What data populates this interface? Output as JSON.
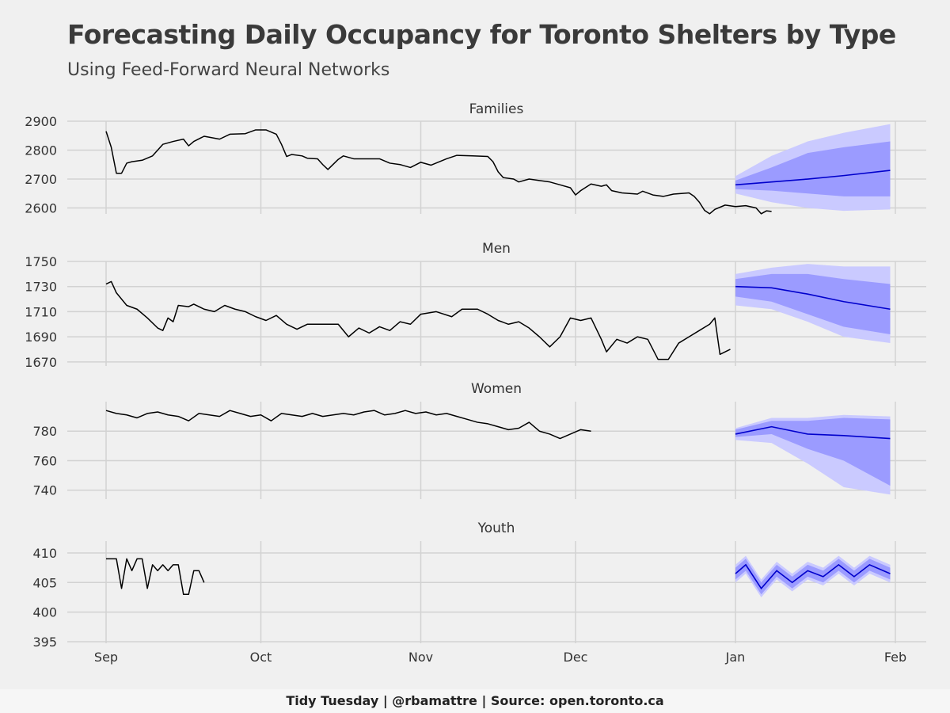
{
  "header": {
    "title": "Forecasting Daily Occupancy for Toronto Shelters by Type",
    "subtitle": "Using Feed-Forward Neural Networks"
  },
  "caption": "Tidy Tuesday | @rbamattre | Source: open.toronto.ca",
  "colors": {
    "background": "#f0f0f0",
    "grid": "#d2d2d2",
    "history_line": "#000000",
    "forecast_line": "#0000cc",
    "band_80": "#9b9bff",
    "band_95": "#cacaff"
  },
  "chart_data": {
    "type": "line",
    "x_axis": {
      "start": "2016-09-01",
      "end": "2017-02-01",
      "forecast_start": "2017-01-01",
      "ticks": [
        {
          "label": "Sep",
          "date": "2016-09-01"
        },
        {
          "label": "Oct",
          "date": "2016-10-01"
        },
        {
          "label": "Nov",
          "date": "2016-11-01"
        },
        {
          "label": "Dec",
          "date": "2016-12-01"
        },
        {
          "label": "Jan",
          "date": "2017-01-01"
        },
        {
          "label": "Feb",
          "date": "2017-02-01"
        }
      ]
    },
    "panels": [
      {
        "name": "Families",
        "ylim": [
          2585,
          2900
        ],
        "yticks": [
          2600,
          2700,
          2800,
          2900
        ],
        "history": [
          [
            "2016-09-01",
            2865
          ],
          [
            "2016-09-02",
            2810
          ],
          [
            "2016-09-03",
            2720
          ],
          [
            "2016-09-04",
            2720
          ],
          [
            "2016-09-05",
            2755
          ],
          [
            "2016-09-06",
            2760
          ],
          [
            "2016-09-08",
            2765
          ],
          [
            "2016-09-10",
            2780
          ],
          [
            "2016-09-12",
            2820
          ],
          [
            "2016-09-14",
            2830
          ],
          [
            "2016-09-16",
            2838
          ],
          [
            "2016-09-17",
            2815
          ],
          [
            "2016-09-18",
            2830
          ],
          [
            "2016-09-20",
            2848
          ],
          [
            "2016-09-23",
            2838
          ],
          [
            "2016-09-25",
            2855
          ],
          [
            "2016-09-28",
            2857
          ],
          [
            "2016-09-30",
            2870
          ],
          [
            "2016-10-02",
            2870
          ],
          [
            "2016-10-04",
            2855
          ],
          [
            "2016-10-05",
            2820
          ],
          [
            "2016-10-06",
            2778
          ],
          [
            "2016-10-07",
            2785
          ],
          [
            "2016-10-09",
            2780
          ],
          [
            "2016-10-10",
            2772
          ],
          [
            "2016-10-12",
            2770
          ],
          [
            "2016-10-13",
            2750
          ],
          [
            "2016-10-14",
            2733
          ],
          [
            "2016-10-16",
            2768
          ],
          [
            "2016-10-17",
            2780
          ],
          [
            "2016-10-19",
            2770
          ],
          [
            "2016-10-24",
            2770
          ],
          [
            "2016-10-26",
            2755
          ],
          [
            "2016-10-28",
            2750
          ],
          [
            "2016-10-30",
            2740
          ],
          [
            "2016-11-01",
            2758
          ],
          [
            "2016-11-03",
            2748
          ],
          [
            "2016-11-06",
            2770
          ],
          [
            "2016-11-08",
            2782
          ],
          [
            "2016-11-11",
            2780
          ],
          [
            "2016-11-14",
            2778
          ],
          [
            "2016-11-15",
            2760
          ],
          [
            "2016-11-16",
            2725
          ],
          [
            "2016-11-17",
            2705
          ],
          [
            "2016-11-19",
            2700
          ],
          [
            "2016-11-20",
            2690
          ],
          [
            "2016-11-22",
            2700
          ],
          [
            "2016-11-24",
            2695
          ],
          [
            "2016-11-26",
            2690
          ],
          [
            "2016-11-28",
            2680
          ],
          [
            "2016-11-30",
            2670
          ],
          [
            "2016-12-01",
            2645
          ],
          [
            "2016-12-02",
            2660
          ],
          [
            "2016-12-04",
            2683
          ],
          [
            "2016-12-06",
            2675
          ],
          [
            "2016-12-07",
            2680
          ],
          [
            "2016-12-08",
            2660
          ],
          [
            "2016-12-10",
            2652
          ],
          [
            "2016-12-13",
            2648
          ],
          [
            "2016-12-14",
            2658
          ],
          [
            "2016-12-16",
            2645
          ],
          [
            "2016-12-18",
            2640
          ],
          [
            "2016-12-20",
            2648
          ],
          [
            "2016-12-23",
            2652
          ],
          [
            "2016-12-24",
            2640
          ],
          [
            "2016-12-25",
            2620
          ],
          [
            "2016-12-26",
            2592
          ],
          [
            "2016-12-27",
            2580
          ],
          [
            "2016-12-28",
            2595
          ],
          [
            "2016-12-30",
            2610
          ],
          [
            "2017-01-01",
            2605
          ],
          [
            "2017-01-03",
            2608
          ],
          [
            "2017-01-05",
            2600
          ],
          [
            "2017-01-06",
            2580
          ],
          [
            "2017-01-07",
            2590
          ],
          [
            "2017-01-08",
            2588
          ]
        ],
        "forecast": [
          [
            "2017-01-01",
            2680,
            2665,
            2695,
            2650,
            2710
          ],
          [
            "2017-01-08",
            2690,
            2660,
            2740,
            2620,
            2780
          ],
          [
            "2017-01-15",
            2700,
            2650,
            2790,
            2600,
            2830
          ],
          [
            "2017-01-22",
            2712,
            2640,
            2810,
            2590,
            2860
          ],
          [
            "2017-01-31",
            2730,
            2640,
            2830,
            2595,
            2890
          ]
        ]
      },
      {
        "name": "Men",
        "ylim": [
          1668,
          1750
        ],
        "yticks": [
          1670,
          1690,
          1710,
          1730,
          1750
        ],
        "history": [
          [
            "2016-09-01",
            1732
          ],
          [
            "2016-09-02",
            1734
          ],
          [
            "2016-09-03",
            1725
          ],
          [
            "2016-09-05",
            1715
          ],
          [
            "2016-09-07",
            1712
          ],
          [
            "2016-09-09",
            1705
          ],
          [
            "2016-09-11",
            1697
          ],
          [
            "2016-09-12",
            1695
          ],
          [
            "2016-09-13",
            1705
          ],
          [
            "2016-09-14",
            1702
          ],
          [
            "2016-09-15",
            1715
          ],
          [
            "2016-09-17",
            1714
          ],
          [
            "2016-09-18",
            1716
          ],
          [
            "2016-09-20",
            1712
          ],
          [
            "2016-09-22",
            1710
          ],
          [
            "2016-09-24",
            1715
          ],
          [
            "2016-09-26",
            1712
          ],
          [
            "2016-09-28",
            1710
          ],
          [
            "2016-09-30",
            1706
          ],
          [
            "2016-10-02",
            1703
          ],
          [
            "2016-10-04",
            1707
          ],
          [
            "2016-10-06",
            1700
          ],
          [
            "2016-10-08",
            1696
          ],
          [
            "2016-10-10",
            1700
          ],
          [
            "2016-10-13",
            1700
          ],
          [
            "2016-10-16",
            1700
          ],
          [
            "2016-10-18",
            1690
          ],
          [
            "2016-10-20",
            1697
          ],
          [
            "2016-10-22",
            1693
          ],
          [
            "2016-10-24",
            1698
          ],
          [
            "2016-10-26",
            1695
          ],
          [
            "2016-10-28",
            1702
          ],
          [
            "2016-10-30",
            1700
          ],
          [
            "2016-11-01",
            1708
          ],
          [
            "2016-11-04",
            1710
          ],
          [
            "2016-11-07",
            1706
          ],
          [
            "2016-11-09",
            1712
          ],
          [
            "2016-11-12",
            1712
          ],
          [
            "2016-11-14",
            1708
          ],
          [
            "2016-11-16",
            1703
          ],
          [
            "2016-11-18",
            1700
          ],
          [
            "2016-11-20",
            1702
          ],
          [
            "2016-11-22",
            1697
          ],
          [
            "2016-11-24",
            1690
          ],
          [
            "2016-11-26",
            1682
          ],
          [
            "2016-11-28",
            1690
          ],
          [
            "2016-11-30",
            1705
          ],
          [
            "2016-12-02",
            1703
          ],
          [
            "2016-12-04",
            1705
          ],
          [
            "2016-12-06",
            1688
          ],
          [
            "2016-12-07",
            1678
          ],
          [
            "2016-12-09",
            1688
          ],
          [
            "2016-12-11",
            1685
          ],
          [
            "2016-12-13",
            1690
          ],
          [
            "2016-12-15",
            1688
          ],
          [
            "2016-12-17",
            1672
          ],
          [
            "2016-12-19",
            1672
          ],
          [
            "2016-12-21",
            1685
          ],
          [
            "2016-12-23",
            1690
          ],
          [
            "2016-12-25",
            1695
          ],
          [
            "2016-12-27",
            1700
          ],
          [
            "2016-12-28",
            1705
          ],
          [
            "2016-12-29",
            1676
          ],
          [
            "2016-12-31",
            1680
          ]
        ],
        "forecast": [
          [
            "2017-01-01",
            1730,
            1722,
            1736,
            1715,
            1740
          ],
          [
            "2017-01-08",
            1729,
            1718,
            1740,
            1712,
            1745
          ],
          [
            "2017-01-15",
            1724,
            1708,
            1740,
            1702,
            1748
          ],
          [
            "2017-01-22",
            1718,
            1698,
            1736,
            1690,
            1746
          ],
          [
            "2017-01-31",
            1712,
            1692,
            1732,
            1685,
            1746
          ]
        ]
      },
      {
        "name": "Women",
        "ylim": [
          735,
          800
        ],
        "yticks": [
          740,
          760,
          780
        ],
        "history": [
          [
            "2016-09-01",
            794
          ],
          [
            "2016-09-03",
            792
          ],
          [
            "2016-09-05",
            791
          ],
          [
            "2016-09-07",
            789
          ],
          [
            "2016-09-09",
            792
          ],
          [
            "2016-09-11",
            793
          ],
          [
            "2016-09-13",
            791
          ],
          [
            "2016-09-15",
            790
          ],
          [
            "2016-09-17",
            787
          ],
          [
            "2016-09-19",
            792
          ],
          [
            "2016-09-21",
            791
          ],
          [
            "2016-09-23",
            790
          ],
          [
            "2016-09-25",
            794
          ],
          [
            "2016-09-27",
            792
          ],
          [
            "2016-09-29",
            790
          ],
          [
            "2016-10-01",
            791
          ],
          [
            "2016-10-03",
            787
          ],
          [
            "2016-10-05",
            792
          ],
          [
            "2016-10-07",
            791
          ],
          [
            "2016-10-09",
            790
          ],
          [
            "2016-10-11",
            792
          ],
          [
            "2016-10-13",
            790
          ],
          [
            "2016-10-15",
            791
          ],
          [
            "2016-10-17",
            792
          ],
          [
            "2016-10-19",
            791
          ],
          [
            "2016-10-21",
            793
          ],
          [
            "2016-10-23",
            794
          ],
          [
            "2016-10-25",
            791
          ],
          [
            "2016-10-27",
            792
          ],
          [
            "2016-10-29",
            794
          ],
          [
            "2016-10-31",
            792
          ],
          [
            "2016-11-02",
            793
          ],
          [
            "2016-11-04",
            791
          ],
          [
            "2016-11-06",
            792
          ],
          [
            "2016-11-08",
            790
          ],
          [
            "2016-11-10",
            788
          ],
          [
            "2016-11-12",
            786
          ],
          [
            "2016-11-14",
            785
          ],
          [
            "2016-11-16",
            783
          ],
          [
            "2016-11-18",
            781
          ],
          [
            "2016-11-20",
            782
          ],
          [
            "2016-11-22",
            786
          ],
          [
            "2016-11-24",
            780
          ],
          [
            "2016-11-26",
            778
          ],
          [
            "2016-11-28",
            775
          ],
          [
            "2016-11-30",
            778
          ],
          [
            "2016-12-02",
            781
          ],
          [
            "2016-12-04",
            780
          ]
        ],
        "forecast": [
          [
            "2017-01-01",
            778,
            776,
            781,
            774,
            782
          ],
          [
            "2017-01-08",
            783,
            778,
            787,
            772,
            789
          ],
          [
            "2017-01-15",
            778,
            768,
            787,
            758,
            789
          ],
          [
            "2017-01-22",
            777,
            760,
            789,
            742,
            791
          ],
          [
            "2017-01-31",
            775,
            743,
            788,
            737,
            790
          ]
        ]
      },
      {
        "name": "Youth",
        "ylim": [
          395,
          412
        ],
        "yticks": [
          395,
          400,
          405,
          410
        ],
        "history": [
          [
            "2016-09-01",
            409
          ],
          [
            "2016-09-02",
            409
          ],
          [
            "2016-09-03",
            409
          ],
          [
            "2016-09-04",
            404
          ],
          [
            "2016-09-05",
            409
          ],
          [
            "2016-09-06",
            407
          ],
          [
            "2016-09-07",
            409
          ],
          [
            "2016-09-08",
            409
          ],
          [
            "2016-09-09",
            404
          ],
          [
            "2016-09-10",
            408
          ],
          [
            "2016-09-11",
            407
          ],
          [
            "2016-09-12",
            408
          ],
          [
            "2016-09-13",
            407
          ],
          [
            "2016-09-14",
            408
          ],
          [
            "2016-09-15",
            408
          ],
          [
            "2016-09-16",
            403
          ],
          [
            "2016-09-17",
            403
          ],
          [
            "2016-09-18",
            407
          ],
          [
            "2016-09-19",
            407
          ],
          [
            "2016-09-20",
            405
          ]
        ],
        "forecast": [
          [
            "2017-01-01",
            406.5,
            405.5,
            407.5,
            405,
            408
          ],
          [
            "2017-01-03",
            408,
            407,
            409,
            406.5,
            409.5
          ],
          [
            "2017-01-06",
            404,
            403,
            405,
            402.5,
            405.5
          ],
          [
            "2017-01-09",
            407,
            406,
            408,
            405.5,
            408.5
          ],
          [
            "2017-01-12",
            405,
            404,
            406,
            403.5,
            406.5
          ],
          [
            "2017-01-15",
            407,
            406,
            408,
            405.5,
            408.5
          ],
          [
            "2017-01-18",
            406,
            405,
            407,
            404.5,
            407.5
          ],
          [
            "2017-01-21",
            408,
            407,
            409,
            406.5,
            409.5
          ],
          [
            "2017-01-24",
            406,
            405,
            407,
            404.5,
            407.5
          ],
          [
            "2017-01-27",
            408,
            407,
            409,
            406.5,
            409.5
          ],
          [
            "2017-01-31",
            406.5,
            405.5,
            407.5,
            405,
            408
          ]
        ]
      }
    ]
  }
}
